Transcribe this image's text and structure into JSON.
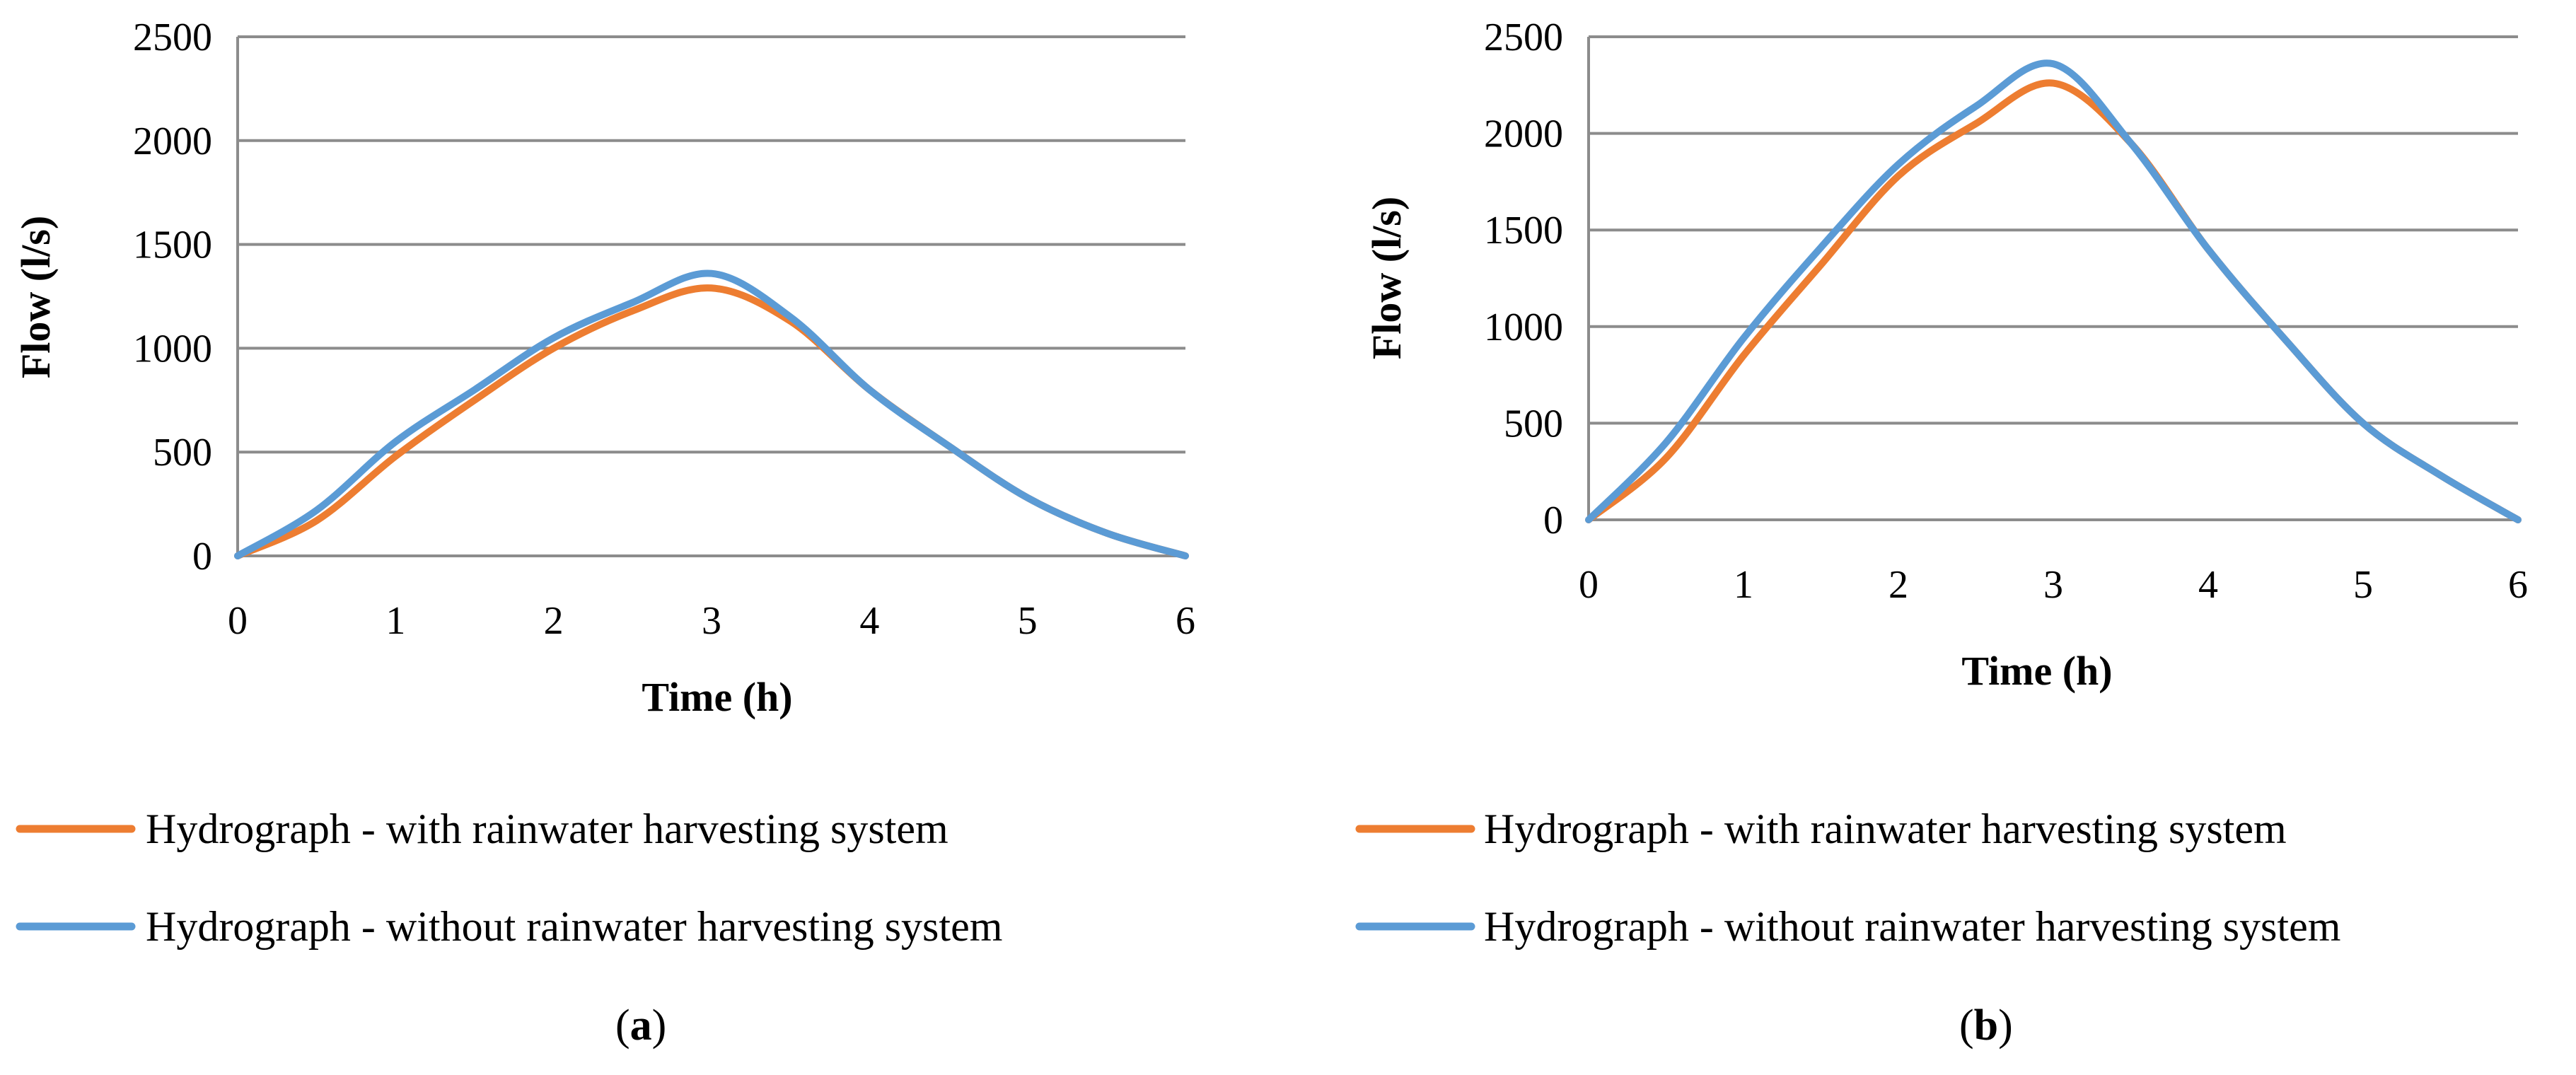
{
  "chart_data": [
    {
      "type": "line",
      "panel_label": "a",
      "xlabel": "Time (h)",
      "ylabel": "Flow (l/s)",
      "xlim": [
        0,
        6
      ],
      "ylim": [
        0,
        2500
      ],
      "xticks": [
        "0",
        "1",
        "2",
        "3",
        "4",
        "5",
        "6"
      ],
      "yticks": [
        "0",
        "500",
        "1000",
        "1500",
        "2000",
        "2500"
      ],
      "grid": true,
      "legend": "bottom",
      "series": [
        {
          "name": "Hydrograph - with rainwater harvesting system",
          "color": "#ED7D31",
          "x": [
            0,
            0.5,
            1,
            1.5,
            2,
            2.5,
            3,
            3.5,
            4,
            4.5,
            5,
            5.5,
            6
          ],
          "y": [
            0,
            170,
            480,
            750,
            1000,
            1180,
            1290,
            1130,
            800,
            530,
            280,
            110,
            0
          ]
        },
        {
          "name": "Hydrograph - without rainwater harvesting system",
          "color": "#5B9BD5",
          "x": [
            0,
            0.5,
            1,
            1.5,
            2,
            2.5,
            3,
            3.5,
            4,
            4.5,
            5,
            5.5,
            6
          ],
          "y": [
            0,
            220,
            550,
            800,
            1050,
            1220,
            1360,
            1150,
            800,
            530,
            280,
            110,
            0
          ]
        }
      ]
    },
    {
      "type": "line",
      "panel_label": "b",
      "xlabel": "Time (h)",
      "ylabel": "Flow (l/s)",
      "xlim": [
        0,
        6
      ],
      "ylim": [
        0,
        2500
      ],
      "xticks": [
        "0",
        "1",
        "2",
        "3",
        "4",
        "5",
        "6"
      ],
      "yticks": [
        "0",
        "500",
        "1000",
        "1500",
        "2000",
        "2500"
      ],
      "grid": true,
      "legend": "bottom",
      "series": [
        {
          "name": "Hydrograph - with rainwater harvesting system",
          "color": "#ED7D31",
          "x": [
            0,
            0.5,
            1,
            1.5,
            2,
            2.5,
            3,
            3.5,
            4,
            4.5,
            5,
            5.5,
            6
          ],
          "y": [
            0,
            320,
            850,
            1320,
            1780,
            2050,
            2260,
            1950,
            1400,
            930,
            500,
            230,
            0
          ]
        },
        {
          "name": "Hydrograph - without rainwater harvesting system",
          "color": "#5B9BD5",
          "x": [
            0,
            0.5,
            1,
            1.5,
            2,
            2.5,
            3,
            3.5,
            4,
            4.5,
            5,
            5.5,
            6
          ],
          "y": [
            0,
            400,
            940,
            1410,
            1840,
            2140,
            2360,
            1950,
            1400,
            930,
            500,
            230,
            0
          ]
        }
      ]
    }
  ]
}
